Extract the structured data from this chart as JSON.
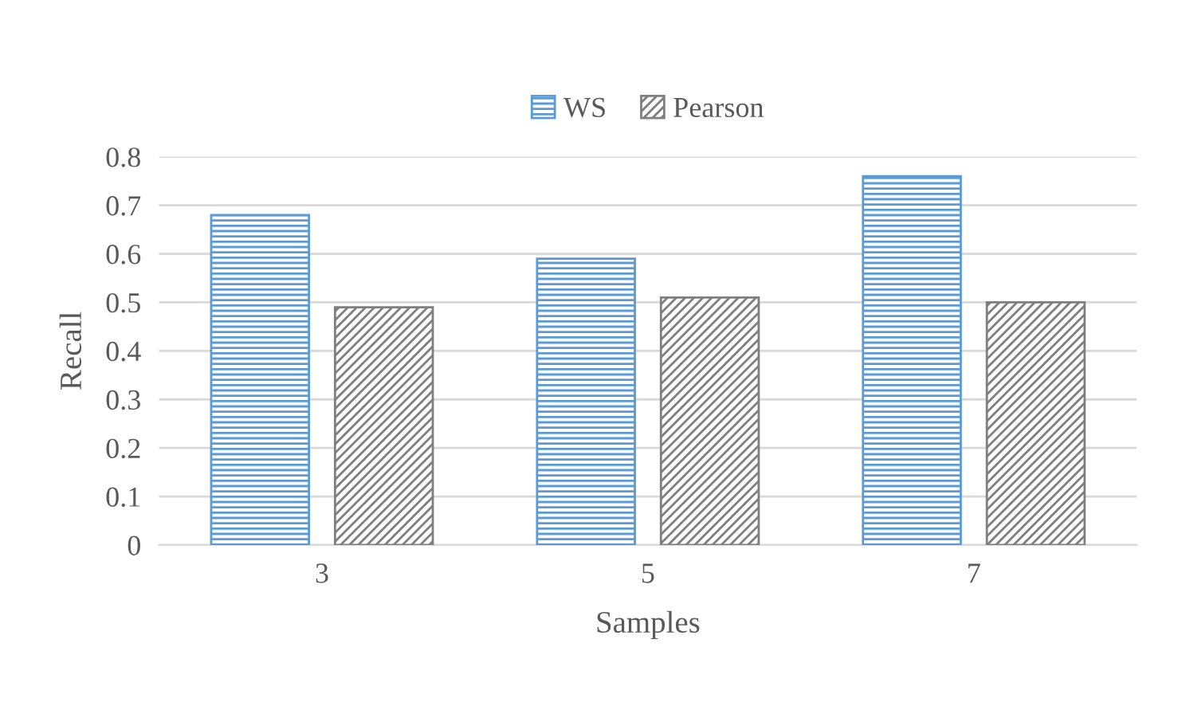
{
  "chart_data": {
    "type": "bar",
    "xlabel": "Samples",
    "ylabel": "Recall",
    "categories": [
      "3",
      "5",
      "7"
    ],
    "series": [
      {
        "name": "WS",
        "color": "#5b9bd5",
        "values": [
          0.68,
          0.59,
          0.76
        ]
      },
      {
        "name": "Pearson",
        "color": "#7f7f7f",
        "values": [
          0.49,
          0.51,
          0.5
        ]
      }
    ],
    "ylim": [
      0,
      0.8
    ],
    "yticks": [
      0,
      0.1,
      0.2,
      0.3,
      0.4,
      0.5,
      0.6,
      0.7,
      0.8
    ],
    "grid": "y",
    "legend": "top"
  }
}
